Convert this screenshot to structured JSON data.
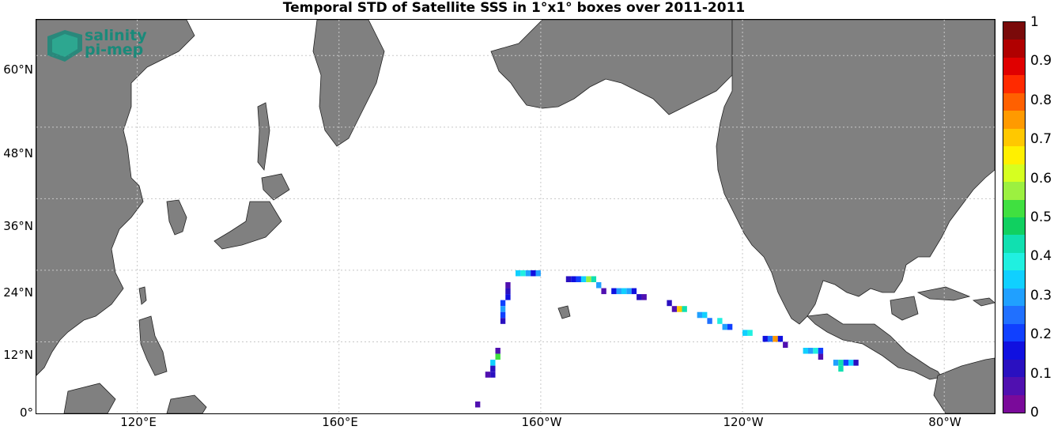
{
  "title": "Temporal STD of Satellite SSS in 1°x1° boxes over 2011-2011",
  "logo": {
    "line1": "salinity",
    "line2": "pi-mep"
  },
  "y_axis_labels": [
    "60°N",
    "48°N",
    "36°N",
    "24°N",
    "12°N",
    "0°"
  ],
  "x_axis_labels": [
    "120°E",
    "160°E",
    "160°W",
    "120°W",
    "80°W"
  ],
  "colorbar": {
    "min": 0,
    "max": 1,
    "tick_labels": [
      "1",
      "0.9",
      "0.8",
      "0.7",
      "0.6",
      "0.5",
      "0.4",
      "0.3",
      "0.2",
      "0.1",
      "0"
    ],
    "colors": [
      "#7a0a0a",
      "#b00000",
      "#e00000",
      "#ff2a00",
      "#ff6000",
      "#ff9a00",
      "#ffc800",
      "#fff000",
      "#d6ff20",
      "#9cf040",
      "#40e040",
      "#10d060",
      "#10e0b0",
      "#20f0e0",
      "#10d0ff",
      "#20a0ff",
      "#2070ff",
      "#1040ff",
      "#1010e0",
      "#2a10c0",
      "#5010b0",
      "#7a0a9a"
    ]
  },
  "map": {
    "projection": "equirectangular",
    "lon_range": [
      100,
      290
    ],
    "lat_range": [
      0,
      66
    ],
    "land_color": "#808080",
    "grid": "dotted"
  },
  "chart_data": {
    "type": "heatmap",
    "title": "Temporal STD of Satellite SSS in 1°x1° boxes over 2011-2011",
    "value_range": [
      0,
      1
    ],
    "cells": [
      {
        "lon": 195,
        "lat": 23,
        "v": 0.35
      },
      {
        "lon": 196,
        "lat": 23,
        "v": 0.4
      },
      {
        "lon": 197,
        "lat": 23,
        "v": 0.3
      },
      {
        "lon": 198,
        "lat": 23,
        "v": 0.15
      },
      {
        "lon": 199,
        "lat": 23,
        "v": 0.3
      },
      {
        "lon": 205,
        "lat": 22,
        "v": 0.1
      },
      {
        "lon": 206,
        "lat": 22,
        "v": 0.15
      },
      {
        "lon": 207,
        "lat": 22,
        "v": 0.2
      },
      {
        "lon": 208,
        "lat": 22,
        "v": 0.35
      },
      {
        "lon": 209,
        "lat": 22,
        "v": 0.55
      },
      {
        "lon": 210,
        "lat": 22,
        "v": 0.45
      },
      {
        "lon": 211,
        "lat": 21,
        "v": 0.3
      },
      {
        "lon": 212,
        "lat": 20,
        "v": 0.05
      },
      {
        "lon": 214,
        "lat": 20,
        "v": 0.15
      },
      {
        "lon": 215,
        "lat": 20,
        "v": 0.3
      },
      {
        "lon": 216,
        "lat": 20,
        "v": 0.35
      },
      {
        "lon": 217,
        "lat": 20,
        "v": 0.3
      },
      {
        "lon": 218,
        "lat": 20,
        "v": 0.15
      },
      {
        "lon": 219,
        "lat": 19,
        "v": 0.1
      },
      {
        "lon": 220,
        "lat": 19,
        "v": 0.05
      },
      {
        "lon": 225,
        "lat": 18,
        "v": 0.1
      },
      {
        "lon": 226,
        "lat": 17,
        "v": 0.05
      },
      {
        "lon": 227,
        "lat": 17,
        "v": 0.7
      },
      {
        "lon": 228,
        "lat": 17,
        "v": 0.45
      },
      {
        "lon": 231,
        "lat": 16,
        "v": 0.3
      },
      {
        "lon": 232,
        "lat": 16,
        "v": 0.35
      },
      {
        "lon": 233,
        "lat": 15,
        "v": 0.25
      },
      {
        "lon": 235,
        "lat": 15,
        "v": 0.4
      },
      {
        "lon": 236,
        "lat": 14,
        "v": 0.3
      },
      {
        "lon": 237,
        "lat": 14,
        "v": 0.2
      },
      {
        "lon": 240,
        "lat": 13,
        "v": 0.35
      },
      {
        "lon": 241,
        "lat": 13,
        "v": 0.4
      },
      {
        "lon": 244,
        "lat": 12,
        "v": 0.15
      },
      {
        "lon": 245,
        "lat": 12,
        "v": 0.25
      },
      {
        "lon": 246,
        "lat": 12,
        "v": 0.75
      },
      {
        "lon": 247,
        "lat": 12,
        "v": 0.15
      },
      {
        "lon": 248,
        "lat": 11,
        "v": 0.05
      },
      {
        "lon": 252,
        "lat": 10,
        "v": 0.35
      },
      {
        "lon": 253,
        "lat": 10,
        "v": 0.3
      },
      {
        "lon": 254,
        "lat": 10,
        "v": 0.4
      },
      {
        "lon": 255,
        "lat": 10,
        "v": 0.2
      },
      {
        "lon": 255,
        "lat": 9,
        "v": 0.05
      },
      {
        "lon": 258,
        "lat": 8,
        "v": 0.3
      },
      {
        "lon": 259,
        "lat": 8,
        "v": 0.45
      },
      {
        "lon": 260,
        "lat": 8,
        "v": 0.2
      },
      {
        "lon": 261,
        "lat": 8,
        "v": 0.35
      },
      {
        "lon": 262,
        "lat": 8,
        "v": 0.1
      },
      {
        "lon": 259,
        "lat": 7,
        "v": 0.45
      },
      {
        "lon": 193,
        "lat": 21,
        "v": 0.05
      },
      {
        "lon": 193,
        "lat": 20,
        "v": 0.1
      },
      {
        "lon": 193,
        "lat": 19,
        "v": 0.15
      },
      {
        "lon": 192,
        "lat": 18,
        "v": 0.2
      },
      {
        "lon": 192,
        "lat": 17,
        "v": 0.3
      },
      {
        "lon": 192,
        "lat": 16,
        "v": 0.2
      },
      {
        "lon": 192,
        "lat": 15,
        "v": 0.1
      },
      {
        "lon": 191,
        "lat": 10,
        "v": 0.05
      },
      {
        "lon": 191,
        "lat": 9,
        "v": 0.5
      },
      {
        "lon": 190,
        "lat": 8,
        "v": 0.35
      },
      {
        "lon": 190,
        "lat": 7,
        "v": 0.1
      },
      {
        "lon": 189,
        "lat": 6,
        "v": 0.05
      },
      {
        "lon": 190,
        "lat": 6,
        "v": 0.1
      },
      {
        "lon": 187,
        "lat": 1,
        "v": 0.05
      }
    ]
  }
}
